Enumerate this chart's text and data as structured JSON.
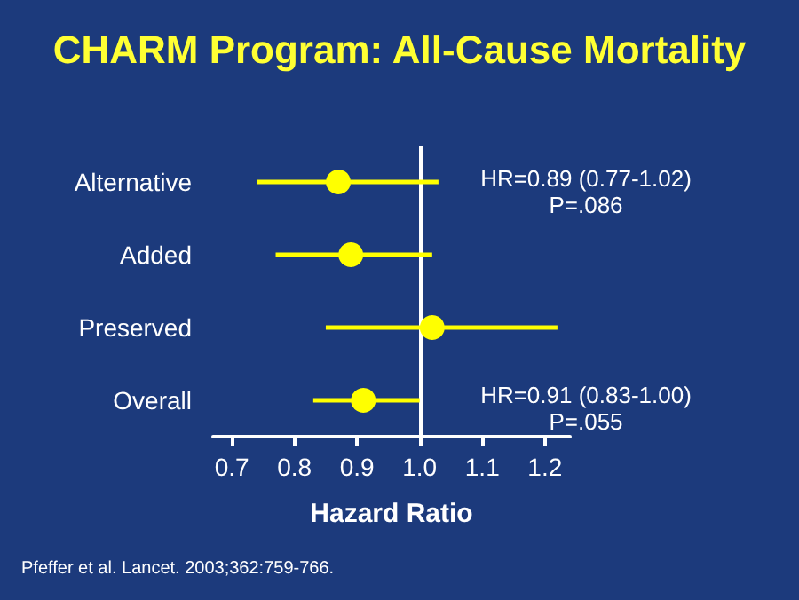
{
  "chart_data": {
    "type": "scatter",
    "orientation": "horizontal",
    "title": "CHARM Program: All-Cause Mortality",
    "xlabel": "Hazard Ratio",
    "categories": [
      "Alternative",
      "Added",
      "Preserved",
      "Overall"
    ],
    "values": [
      0.87,
      0.89,
      1.02,
      0.91
    ],
    "errors": [
      [
        0.74,
        1.03
      ],
      [
        0.77,
        1.02
      ],
      [
        0.85,
        1.22
      ],
      [
        0.83,
        1.0
      ]
    ],
    "color": "#ffff00",
    "marker": "circle",
    "xlim": [
      0.67,
      1.24
    ],
    "xticks": [
      0.7,
      0.8,
      0.9,
      {
        "value": 1,
        "label": "1.0"
      },
      1.1,
      1.2
    ],
    "ref_lines": [
      {
        "axis": "x",
        "value": 1,
        "color": "#ffffff"
      }
    ],
    "annotations": [
      "HR=0.89 (0.77-1.02)\nP=.086",
      "HR=0.91 (0.83-1.00)\nP=.055",
      "Pfeffer et al. Lancet. 2003;362:759-766."
    ],
    "grid": false
  }
}
